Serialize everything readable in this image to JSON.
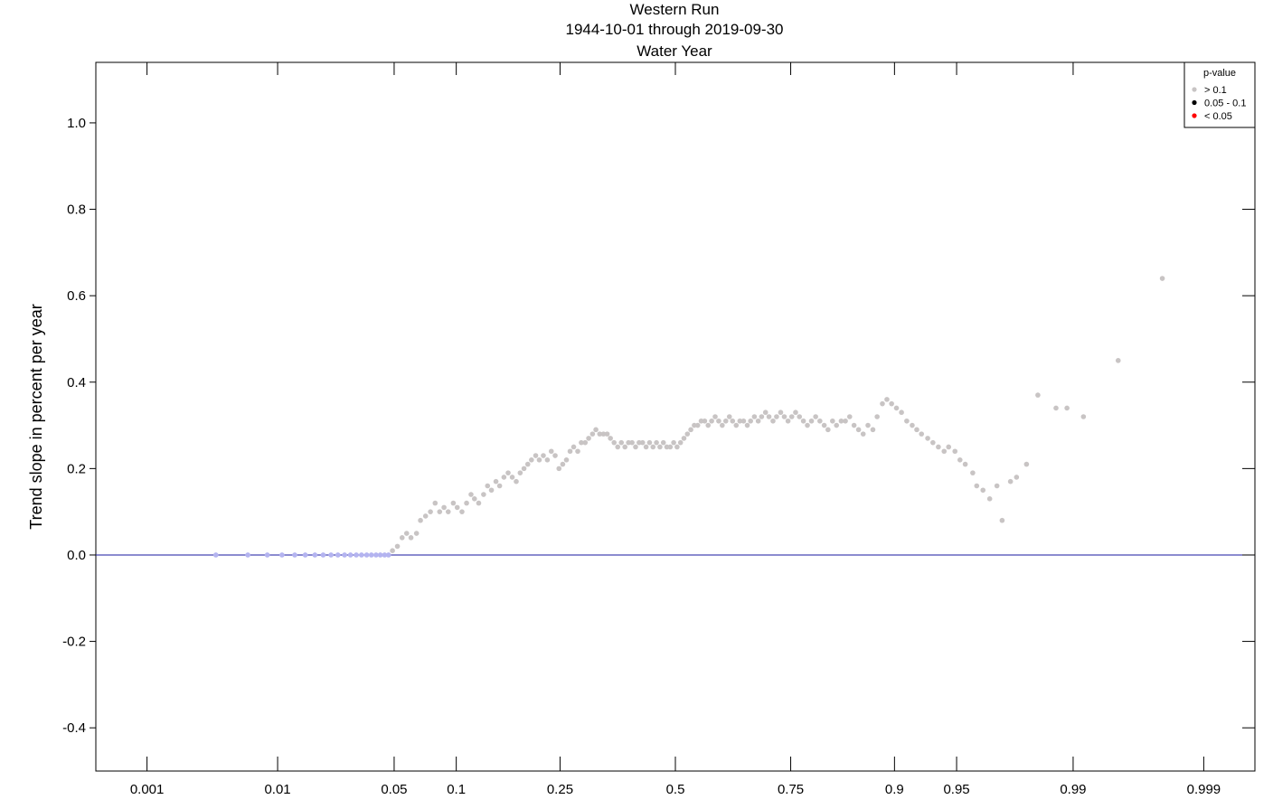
{
  "chart_data": {
    "type": "scatter",
    "title": [
      "Western Run",
      "1944-10-01 through 2019-09-30",
      "Water Year"
    ],
    "ylabel": "Trend slope in percent per year",
    "xlabel": "",
    "x_scale": "normal-probability",
    "xlim": [
      0.00035,
      0.99965
    ],
    "ylim": [
      -0.5,
      1.14
    ],
    "x_ticks": [
      0.001,
      0.01,
      0.05,
      0.1,
      0.25,
      0.5,
      0.75,
      0.9,
      0.95,
      0.99,
      0.999
    ],
    "x_tick_labels": [
      "0.001",
      "0.01",
      "0.05",
      "0.1",
      "0.25",
      "0.5",
      "0.75",
      "0.9",
      "0.95",
      "0.99",
      "0.999"
    ],
    "y_ticks": [
      -0.4,
      -0.2,
      0.0,
      0.2,
      0.4,
      0.6,
      0.8,
      1.0
    ],
    "y_tick_labels": [
      "-0.4",
      "-0.2",
      "0.0",
      "0.2",
      "0.4",
      "0.6",
      "0.8",
      "1.0"
    ],
    "reference_line": {
      "y": 0,
      "color": "#1a1aa0"
    },
    "grid": false,
    "legend": {
      "title": "p-value",
      "position": "top-right",
      "entries": [
        {
          "label": "> 0.1",
          "color": "#c8c4c4"
        },
        {
          "label": "0.05 - 0.1",
          "color": "#000000"
        },
        {
          "label": "< 0.05",
          "color": "#ff0000"
        }
      ]
    },
    "series": [
      {
        "pvalue_class": "> 0.1",
        "zero_color": "#b4b4f0",
        "points": [
          [
            0.0036,
            0.0
          ],
          [
            0.0062,
            0.0
          ],
          [
            0.0085,
            0.0
          ],
          [
            0.0107,
            0.0
          ],
          [
            0.013,
            0.0
          ],
          [
            0.0152,
            0.0
          ],
          [
            0.0175,
            0.0
          ],
          [
            0.0197,
            0.0
          ],
          [
            0.022,
            0.0
          ],
          [
            0.0242,
            0.0
          ],
          [
            0.0265,
            0.0
          ],
          [
            0.0287,
            0.0
          ],
          [
            0.031,
            0.0
          ],
          [
            0.0332,
            0.0
          ],
          [
            0.0355,
            0.0
          ],
          [
            0.0377,
            0.0
          ],
          [
            0.04,
            0.0
          ],
          [
            0.0422,
            0.0
          ],
          [
            0.0445,
            0.0
          ],
          [
            0.0467,
            0.0
          ],
          [
            0.049,
            0.01
          ],
          [
            0.052,
            0.02
          ],
          [
            0.055,
            0.04
          ],
          [
            0.058,
            0.05
          ],
          [
            0.061,
            0.04
          ],
          [
            0.065,
            0.05
          ],
          [
            0.068,
            0.08
          ],
          [
            0.072,
            0.09
          ],
          [
            0.076,
            0.1
          ],
          [
            0.08,
            0.12
          ],
          [
            0.084,
            0.1
          ],
          [
            0.088,
            0.11
          ],
          [
            0.092,
            0.1
          ],
          [
            0.097,
            0.12
          ],
          [
            0.101,
            0.11
          ],
          [
            0.106,
            0.1
          ],
          [
            0.111,
            0.12
          ],
          [
            0.116,
            0.14
          ],
          [
            0.12,
            0.13
          ],
          [
            0.125,
            0.12
          ],
          [
            0.131,
            0.14
          ],
          [
            0.136,
            0.16
          ],
          [
            0.141,
            0.15
          ],
          [
            0.147,
            0.17
          ],
          [
            0.152,
            0.16
          ],
          [
            0.158,
            0.18
          ],
          [
            0.164,
            0.19
          ],
          [
            0.17,
            0.18
          ],
          [
            0.176,
            0.17
          ],
          [
            0.182,
            0.19
          ],
          [
            0.188,
            0.2
          ],
          [
            0.194,
            0.21
          ],
          [
            0.2,
            0.22
          ],
          [
            0.207,
            0.23
          ],
          [
            0.213,
            0.22
          ],
          [
            0.22,
            0.23
          ],
          [
            0.227,
            0.22
          ],
          [
            0.234,
            0.24
          ],
          [
            0.241,
            0.23
          ],
          [
            0.248,
            0.2
          ],
          [
            0.255,
            0.21
          ],
          [
            0.262,
            0.22
          ],
          [
            0.269,
            0.24
          ],
          [
            0.276,
            0.25
          ],
          [
            0.284,
            0.24
          ],
          [
            0.291,
            0.26
          ],
          [
            0.299,
            0.26
          ],
          [
            0.306,
            0.27
          ],
          [
            0.314,
            0.28
          ],
          [
            0.321,
            0.29
          ],
          [
            0.329,
            0.28
          ],
          [
            0.337,
            0.28
          ],
          [
            0.345,
            0.28
          ],
          [
            0.352,
            0.27
          ],
          [
            0.36,
            0.26
          ],
          [
            0.368,
            0.25
          ],
          [
            0.376,
            0.26
          ],
          [
            0.384,
            0.25
          ],
          [
            0.392,
            0.26
          ],
          [
            0.4,
            0.26
          ],
          [
            0.408,
            0.25
          ],
          [
            0.416,
            0.26
          ],
          [
            0.424,
            0.26
          ],
          [
            0.432,
            0.25
          ],
          [
            0.44,
            0.26
          ],
          [
            0.448,
            0.25
          ],
          [
            0.456,
            0.26
          ],
          [
            0.464,
            0.25
          ],
          [
            0.472,
            0.26
          ],
          [
            0.48,
            0.25
          ],
          [
            0.488,
            0.25
          ],
          [
            0.496,
            0.26
          ],
          [
            0.504,
            0.25
          ],
          [
            0.512,
            0.26
          ],
          [
            0.52,
            0.27
          ],
          [
            0.528,
            0.28
          ],
          [
            0.536,
            0.29
          ],
          [
            0.544,
            0.3
          ],
          [
            0.552,
            0.3
          ],
          [
            0.56,
            0.31
          ],
          [
            0.568,
            0.31
          ],
          [
            0.576,
            0.3
          ],
          [
            0.584,
            0.31
          ],
          [
            0.592,
            0.32
          ],
          [
            0.6,
            0.31
          ],
          [
            0.608,
            0.3
          ],
          [
            0.616,
            0.31
          ],
          [
            0.624,
            0.32
          ],
          [
            0.631,
            0.31
          ],
          [
            0.639,
            0.3
          ],
          [
            0.647,
            0.31
          ],
          [
            0.655,
            0.31
          ],
          [
            0.663,
            0.3
          ],
          [
            0.67,
            0.31
          ],
          [
            0.678,
            0.32
          ],
          [
            0.686,
            0.31
          ],
          [
            0.693,
            0.32
          ],
          [
            0.701,
            0.33
          ],
          [
            0.708,
            0.32
          ],
          [
            0.716,
            0.31
          ],
          [
            0.723,
            0.32
          ],
          [
            0.731,
            0.33
          ],
          [
            0.738,
            0.32
          ],
          [
            0.745,
            0.31
          ],
          [
            0.752,
            0.32
          ],
          [
            0.759,
            0.33
          ],
          [
            0.766,
            0.32
          ],
          [
            0.773,
            0.31
          ],
          [
            0.78,
            0.3
          ],
          [
            0.787,
            0.31
          ],
          [
            0.794,
            0.32
          ],
          [
            0.801,
            0.31
          ],
          [
            0.808,
            0.3
          ],
          [
            0.814,
            0.29
          ],
          [
            0.821,
            0.31
          ],
          [
            0.827,
            0.3
          ],
          [
            0.834,
            0.31
          ],
          [
            0.84,
            0.31
          ],
          [
            0.846,
            0.32
          ],
          [
            0.852,
            0.3
          ],
          [
            0.858,
            0.29
          ],
          [
            0.864,
            0.28
          ],
          [
            0.87,
            0.3
          ],
          [
            0.876,
            0.29
          ],
          [
            0.881,
            0.32
          ],
          [
            0.887,
            0.35
          ],
          [
            0.892,
            0.36
          ],
          [
            0.897,
            0.35
          ],
          [
            0.902,
            0.34
          ],
          [
            0.907,
            0.33
          ],
          [
            0.912,
            0.31
          ],
          [
            0.917,
            0.3
          ],
          [
            0.921,
            0.29
          ],
          [
            0.925,
            0.28
          ],
          [
            0.93,
            0.27
          ],
          [
            0.934,
            0.26
          ],
          [
            0.938,
            0.25
          ],
          [
            0.942,
            0.24
          ],
          [
            0.945,
            0.25
          ],
          [
            0.949,
            0.24
          ],
          [
            0.952,
            0.22
          ],
          [
            0.955,
            0.21
          ],
          [
            0.959,
            0.19
          ],
          [
            0.961,
            0.16
          ],
          [
            0.964,
            0.15
          ],
          [
            0.967,
            0.13
          ],
          [
            0.97,
            0.16
          ],
          [
            0.972,
            0.08
          ],
          [
            0.975,
            0.17
          ],
          [
            0.977,
            0.18
          ],
          [
            0.98,
            0.21
          ],
          [
            0.983,
            0.37
          ],
          [
            0.987,
            0.34
          ],
          [
            0.989,
            0.34
          ],
          [
            0.9915,
            0.32
          ],
          [
            0.9952,
            0.45
          ],
          [
            0.9978,
            0.64
          ]
        ]
      }
    ]
  }
}
